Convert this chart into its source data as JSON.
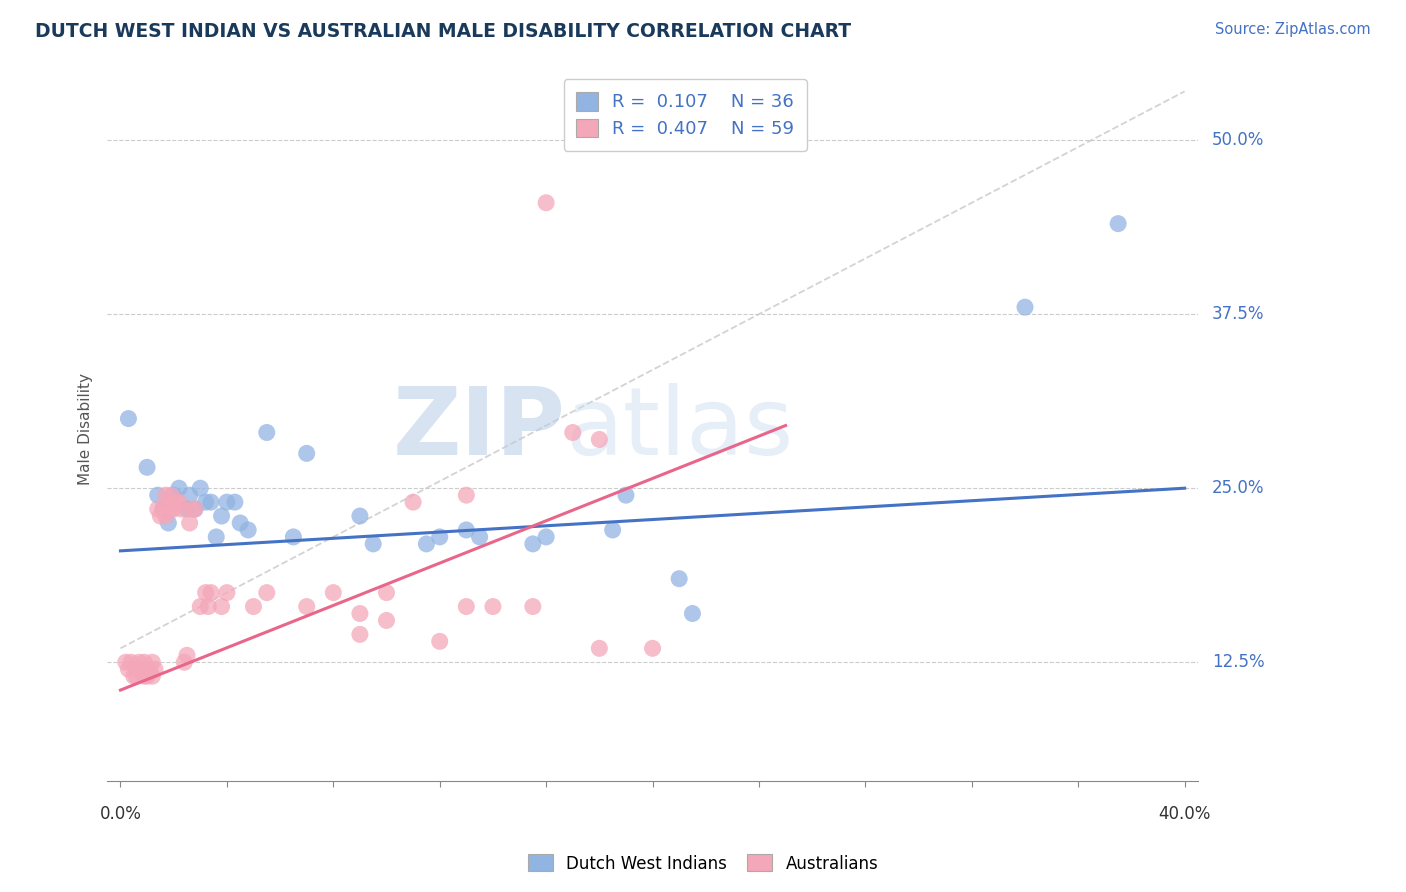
{
  "title": "DUTCH WEST INDIAN VS AUSTRALIAN MALE DISABILITY CORRELATION CHART",
  "source": "Source: ZipAtlas.com",
  "ylabel_ticks": [
    0.125,
    0.25,
    0.375,
    0.5
  ],
  "ylabel_labels": [
    "12.5%",
    "25.0%",
    "37.5%",
    "50.0%"
  ],
  "xmin": 0.0,
  "xmax": 0.4,
  "ymin": 0.04,
  "ymax": 0.545,
  "legend_r1": "R =  0.107",
  "legend_n1": "N = 36",
  "legend_r2": "R =  0.407",
  "legend_n2": "N = 59",
  "blue_color": "#92b4e3",
  "pink_color": "#f4a7b9",
  "blue_line_color": "#4472c4",
  "pink_line_color": "#e8668a",
  "ref_line_color": "#c8c8c8",
  "title_color": "#1a3a5c",
  "source_color": "#4472c4",
  "watermark_zip": "ZIP",
  "watermark_atlas": "atlas",
  "blue_trend": [
    0.0,
    0.205,
    0.4,
    0.25
  ],
  "pink_trend_x": [
    0.0,
    0.25
  ],
  "pink_trend_y": [
    0.105,
    0.295
  ],
  "ref_line": [
    0.0,
    0.135,
    0.4,
    0.535
  ],
  "blue_dots": [
    [
      0.003,
      0.3
    ],
    [
      0.01,
      0.265
    ],
    [
      0.014,
      0.245
    ],
    [
      0.016,
      0.235
    ],
    [
      0.018,
      0.225
    ],
    [
      0.02,
      0.245
    ],
    [
      0.022,
      0.25
    ],
    [
      0.025,
      0.235
    ],
    [
      0.026,
      0.245
    ],
    [
      0.028,
      0.235
    ],
    [
      0.03,
      0.25
    ],
    [
      0.032,
      0.24
    ],
    [
      0.034,
      0.24
    ],
    [
      0.036,
      0.215
    ],
    [
      0.038,
      0.23
    ],
    [
      0.04,
      0.24
    ],
    [
      0.043,
      0.24
    ],
    [
      0.045,
      0.225
    ],
    [
      0.048,
      0.22
    ],
    [
      0.055,
      0.29
    ],
    [
      0.065,
      0.215
    ],
    [
      0.07,
      0.275
    ],
    [
      0.09,
      0.23
    ],
    [
      0.095,
      0.21
    ],
    [
      0.115,
      0.21
    ],
    [
      0.12,
      0.215
    ],
    [
      0.13,
      0.22
    ],
    [
      0.135,
      0.215
    ],
    [
      0.155,
      0.21
    ],
    [
      0.16,
      0.215
    ],
    [
      0.185,
      0.22
    ],
    [
      0.19,
      0.245
    ],
    [
      0.21,
      0.185
    ],
    [
      0.215,
      0.16
    ],
    [
      0.34,
      0.38
    ],
    [
      0.375,
      0.44
    ]
  ],
  "pink_dots": [
    [
      0.002,
      0.125
    ],
    [
      0.003,
      0.12
    ],
    [
      0.004,
      0.125
    ],
    [
      0.005,
      0.115
    ],
    [
      0.006,
      0.12
    ],
    [
      0.006,
      0.115
    ],
    [
      0.007,
      0.12
    ],
    [
      0.007,
      0.125
    ],
    [
      0.008,
      0.12
    ],
    [
      0.009,
      0.115
    ],
    [
      0.009,
      0.125
    ],
    [
      0.01,
      0.12
    ],
    [
      0.01,
      0.115
    ],
    [
      0.011,
      0.12
    ],
    [
      0.012,
      0.115
    ],
    [
      0.012,
      0.125
    ],
    [
      0.013,
      0.12
    ],
    [
      0.014,
      0.235
    ],
    [
      0.015,
      0.23
    ],
    [
      0.016,
      0.235
    ],
    [
      0.017,
      0.23
    ],
    [
      0.017,
      0.245
    ],
    [
      0.018,
      0.24
    ],
    [
      0.019,
      0.235
    ],
    [
      0.019,
      0.245
    ],
    [
      0.02,
      0.235
    ],
    [
      0.021,
      0.24
    ],
    [
      0.022,
      0.24
    ],
    [
      0.023,
      0.235
    ],
    [
      0.024,
      0.125
    ],
    [
      0.025,
      0.13
    ],
    [
      0.026,
      0.225
    ],
    [
      0.027,
      0.235
    ],
    [
      0.028,
      0.235
    ],
    [
      0.03,
      0.165
    ],
    [
      0.032,
      0.175
    ],
    [
      0.033,
      0.165
    ],
    [
      0.034,
      0.175
    ],
    [
      0.038,
      0.165
    ],
    [
      0.04,
      0.175
    ],
    [
      0.05,
      0.165
    ],
    [
      0.055,
      0.175
    ],
    [
      0.07,
      0.165
    ],
    [
      0.08,
      0.175
    ],
    [
      0.09,
      0.16
    ],
    [
      0.1,
      0.175
    ],
    [
      0.11,
      0.24
    ],
    [
      0.13,
      0.165
    ],
    [
      0.14,
      0.165
    ],
    [
      0.155,
      0.165
    ],
    [
      0.17,
      0.29
    ],
    [
      0.18,
      0.285
    ],
    [
      0.09,
      0.145
    ],
    [
      0.1,
      0.155
    ],
    [
      0.12,
      0.14
    ],
    [
      0.13,
      0.245
    ],
    [
      0.16,
      0.455
    ],
    [
      0.18,
      0.135
    ],
    [
      0.2,
      0.135
    ]
  ]
}
